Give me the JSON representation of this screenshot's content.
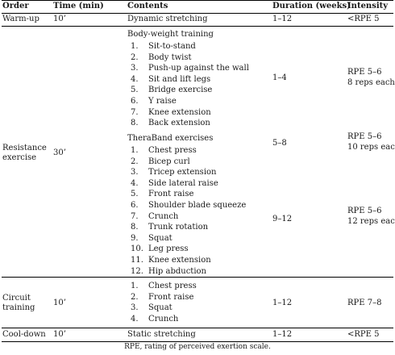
{
  "header": {
    "order": "Order",
    "time": "Time (min)",
    "contents": "Contents",
    "duration": "Duration (weeks)",
    "intensity": "Intensity"
  },
  "warmup": {
    "order": "Warm-up",
    "time": "10’",
    "contents": "Dynamic stretching",
    "duration": "1–12",
    "intensity": "<RPE 5"
  },
  "resistance": {
    "order_line1": "Resistance",
    "order_line2": "exercise",
    "time": "30’",
    "bodyweight_title": "Body-weight training",
    "bodyweight_items": [
      {
        "num": "1.",
        "label": "Sit-to-stand"
      },
      {
        "num": "2.",
        "label": "Body twist"
      },
      {
        "num": "3.",
        "label": "Push-up against the wall"
      },
      {
        "num": "4.",
        "label": "Sit and lift legs"
      },
      {
        "num": "5.",
        "label": "Bridge exercise"
      },
      {
        "num": "6.",
        "label": "Y raise"
      },
      {
        "num": "7.",
        "label": "Knee extension"
      },
      {
        "num": "8.",
        "label": "Back extension"
      }
    ],
    "bodyweight_duration": "1–4",
    "bodyweight_intensity_line1": "RPE 5–6",
    "bodyweight_intensity_line2": "8 reps each",
    "theraband_title": "TheraBand exercises",
    "theraband_items": [
      {
        "num": "1.",
        "label": "Chest press"
      },
      {
        "num": "2.",
        "label": "Bicep curl"
      },
      {
        "num": "3.",
        "label": "Tricep extension"
      },
      {
        "num": "4.",
        "label": "Side lateral raise"
      },
      {
        "num": "5.",
        "label": "Front raise"
      },
      {
        "num": "6.",
        "label": "Shoulder blade squeeze"
      },
      {
        "num": "7.",
        "label": "Crunch"
      },
      {
        "num": "8.",
        "label": "Trunk rotation"
      },
      {
        "num": "9.",
        "label": "Squat"
      },
      {
        "num": "10.",
        "label": "Leg press"
      },
      {
        "num": "11.",
        "label": "Knee extension"
      },
      {
        "num": "12.",
        "label": "Hip abduction"
      }
    ],
    "theraband_duration_a": "5–8",
    "theraband_intensity_a_line1": "RPE 5–6",
    "theraband_intensity_a_line2": "10 reps each",
    "theraband_duration_b": "9–12",
    "theraband_intensity_b_line1": "RPE 5–6",
    "theraband_intensity_b_line2": "12 reps each"
  },
  "circuit": {
    "order_line1": "Circuit",
    "order_line2": "training",
    "time": "10’",
    "items": [
      {
        "num": "1.",
        "label": "Chest press"
      },
      {
        "num": "2.",
        "label": "Front raise"
      },
      {
        "num": "3.",
        "label": "Squat"
      },
      {
        "num": "4.",
        "label": "Crunch"
      }
    ],
    "duration": "1–12",
    "intensity": "RPE 7–8"
  },
  "cooldown": {
    "order": "Cool-down",
    "time": "10’",
    "contents": "Static stretching",
    "duration": "1–12",
    "intensity": "<RPE 5"
  },
  "footnote": "RPE, rating of perceived exertion scale."
}
